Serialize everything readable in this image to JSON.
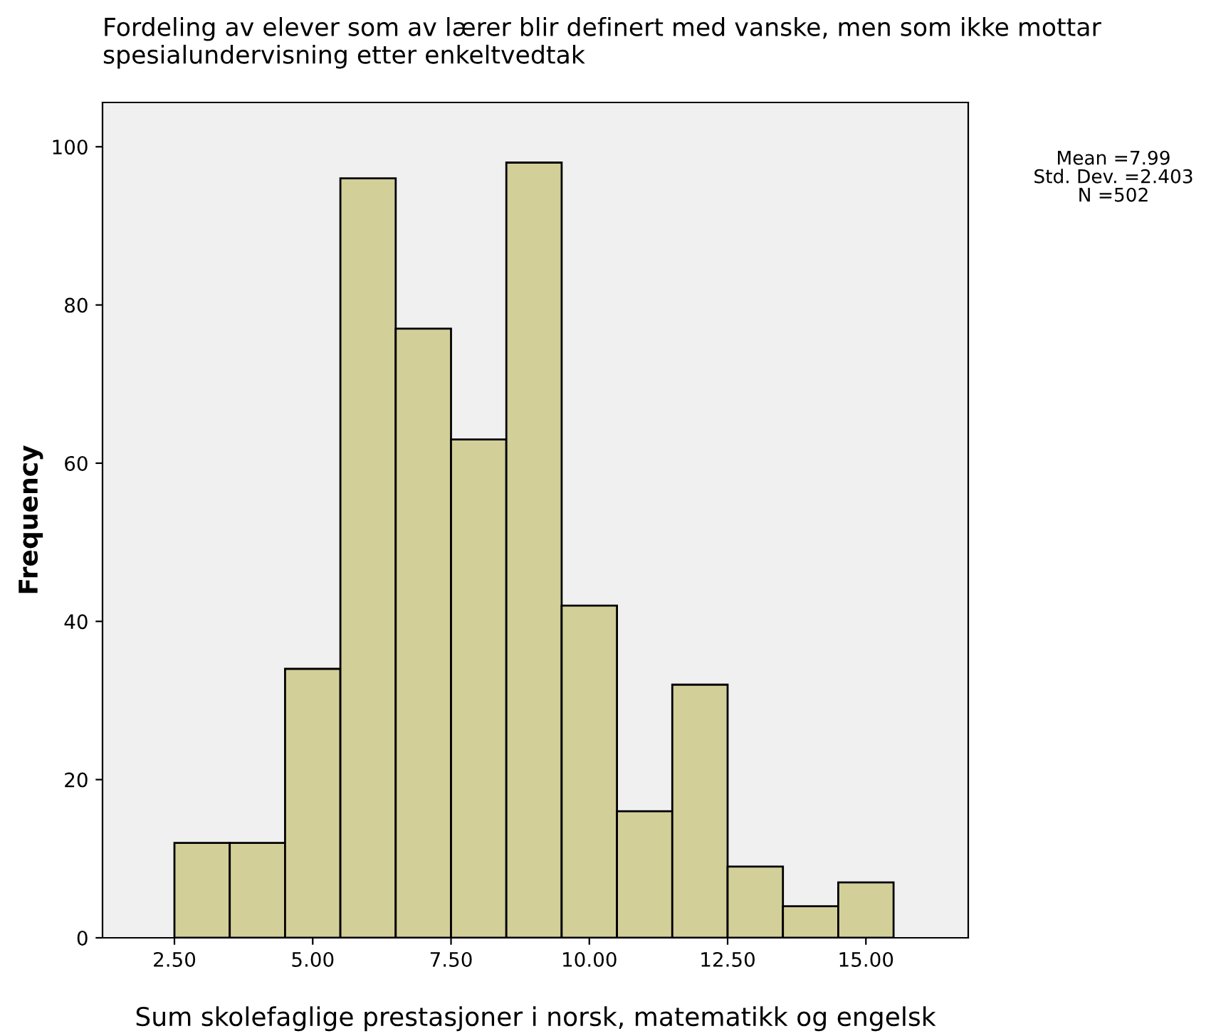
{
  "chart_data": {
    "type": "histogram",
    "title": "Fordeling av elever som av lærer blir definert med vanske, men som ikke mottar spesialundervisning etter enkeltvedtak",
    "xlabel": "Sum skolefaglige prestasjoner i norsk, matematikk og engelsk",
    "ylabel": "Frequency",
    "bins": [
      2.5,
      3.5,
      4.5,
      5.5,
      6.5,
      7.5,
      8.5,
      9.5,
      10.5,
      11.5,
      12.5,
      13.5,
      14.5,
      15.5
    ],
    "values": [
      12,
      12,
      34,
      96,
      77,
      63,
      98,
      42,
      16,
      32,
      9,
      4,
      7
    ],
    "color": "#d3cf99",
    "xlim": [
      1.2,
      16.85
    ],
    "ylim": [
      0,
      105.6
    ],
    "xticks": [
      {
        "value": 2.5,
        "label": "2.50"
      },
      {
        "value": 5,
        "label": "5.00"
      },
      {
        "value": 7.5,
        "label": "7.50"
      },
      {
        "value": 10,
        "label": "10.00"
      },
      {
        "value": 12.5,
        "label": "12.50"
      },
      {
        "value": 15,
        "label": "15.00"
      }
    ],
    "yticks": [
      0,
      20,
      40,
      60,
      80,
      100
    ],
    "annotations": [
      "Mean =7.99",
      "Std. Dev. =2.403",
      "N =502"
    ],
    "grid": false,
    "legend": false
  }
}
